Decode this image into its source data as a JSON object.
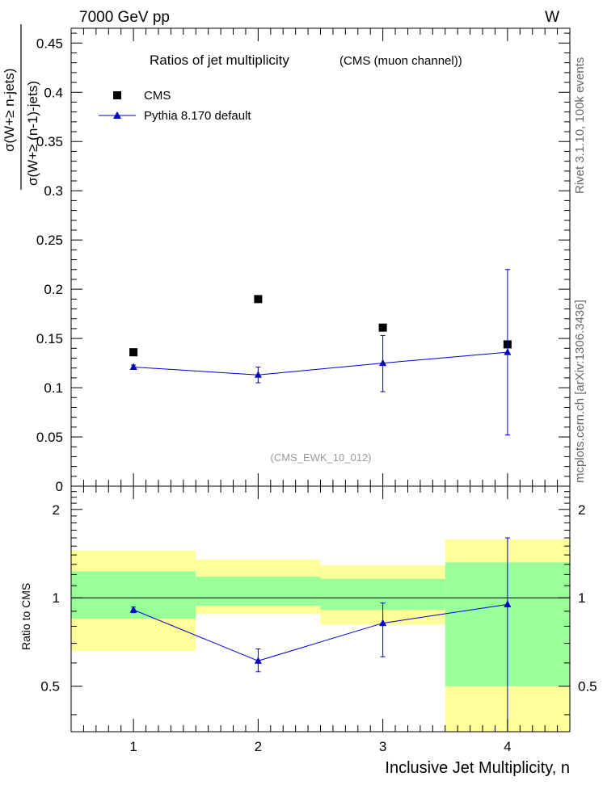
{
  "header": {
    "left": "7000 GeV pp",
    "right": "W"
  },
  "side_labels": {
    "rivet": "Rivet 3.1.10,  100k events",
    "mcplots": "mcplots.cern.ch [arXiv:1306.3436]"
  },
  "colors": {
    "data": "#000000",
    "mc": "#0000cc",
    "band_inner": "#99ff99",
    "band_outer": "#ffff99",
    "ratio_grey_label": "#999999"
  },
  "chart_data": [
    {
      "type": "scatter",
      "title": "Ratios of jet multiplicity",
      "subtitle": "(CMS (muon channel))",
      "watermark": "(CMS_EWK_10_012)",
      "ylabel_numerator": "σ(W+≥ n-jets)",
      "ylabel_denominator": "σ(W+≥ (n-1)-jets)",
      "xlim": [
        0.5,
        4.5
      ],
      "ylim": [
        0,
        0.465
      ],
      "y_ticks": [
        "0",
        "0.05",
        "0.1",
        "0.15",
        "0.2",
        "0.25",
        "0.3",
        "0.35",
        "0.4",
        "0.45"
      ],
      "log_y": false,
      "legend_position": "top-left",
      "series": [
        {
          "name": "CMS",
          "marker": "square",
          "x": [
            1,
            2,
            3,
            4
          ],
          "y": [
            0.136,
            0.19,
            0.161,
            0.144
          ]
        },
        {
          "name": "Pythia 8.170 default",
          "marker": "triangle",
          "x": [
            1,
            2,
            3,
            4
          ],
          "y": [
            0.121,
            0.113,
            0.125,
            0.136
          ],
          "y_err_low": [
            0.002,
            0.008,
            0.029,
            0.084
          ],
          "y_err_high": [
            0.002,
            0.008,
            0.028,
            0.084
          ]
        }
      ]
    },
    {
      "type": "scatter",
      "ylabel": "Ratio to CMS",
      "xlabel": "Inclusive Jet Multiplicity, n",
      "xlim": [
        0.5,
        4.5
      ],
      "ylim": [
        0.35,
        2.4
      ],
      "log_y": true,
      "x_ticks": [
        "1",
        "2",
        "3",
        "4"
      ],
      "y_ticks": [
        "0.5",
        "1",
        "2"
      ],
      "reference_line": 1,
      "bands": {
        "x_edges": [
          0.5,
          1.5,
          2.5,
          3.5,
          4.5
        ],
        "inner_low": [
          0.85,
          0.94,
          0.91,
          0.5
        ],
        "inner_high": [
          1.23,
          1.18,
          1.16,
          1.32
        ],
        "outer_low": [
          0.66,
          0.88,
          0.81,
          0.34
        ],
        "outer_high": [
          1.45,
          1.35,
          1.29,
          1.58
        ]
      },
      "series": [
        {
          "name": "Pythia 8.170 default",
          "marker": "triangle",
          "x": [
            1,
            2,
            3,
            4
          ],
          "y": [
            0.91,
            0.61,
            0.82,
            0.95
          ],
          "y_err_low": [
            0.02,
            0.05,
            0.19,
            0.62
          ],
          "y_err_high": [
            0.02,
            0.06,
            0.14,
            0.65
          ]
        }
      ]
    }
  ]
}
